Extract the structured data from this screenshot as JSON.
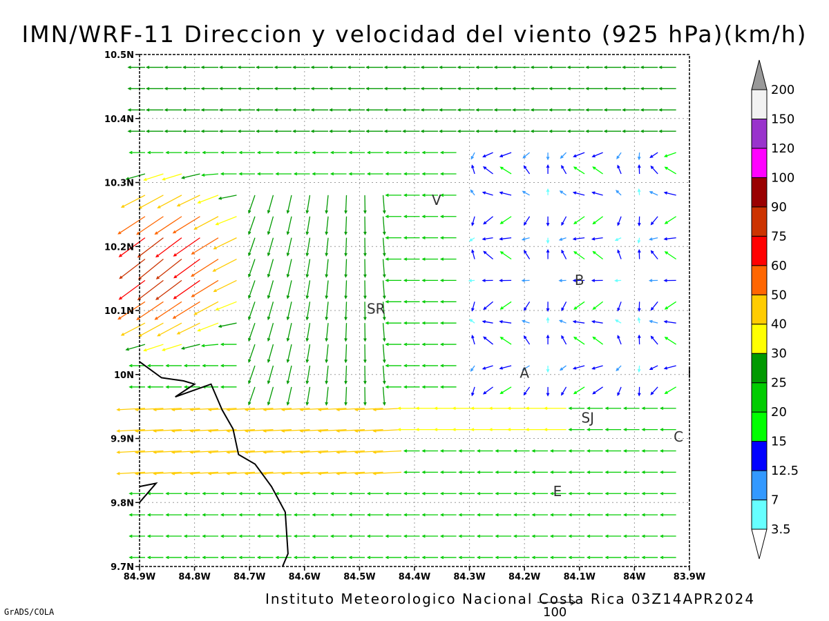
{
  "title": "IMN/WRF-11 Direccion y velocidad del viento (925 hPa)(km/h)",
  "footer": "Instituto Meteorologico Nacional Costa Rica 03Z14APR2024",
  "credit": "GrADS/COLA",
  "ref_vector_label": "100",
  "axes": {
    "lon_labels": [
      "84.9W",
      "84.8W",
      "84.7W",
      "84.6W",
      "84.5W",
      "84.4W",
      "84.3W",
      "84.2W",
      "84.1W",
      "84W",
      "83.9W"
    ],
    "lat_labels": [
      "10.5N",
      "10.4N",
      "10.3N",
      "10.2N",
      "10.1N",
      "10N",
      "9.9N",
      "9.8N",
      "9.7N"
    ]
  },
  "cities": [
    {
      "name": "V",
      "lon": -84.36,
      "lat": 10.265
    },
    {
      "name": "B",
      "lon": -84.1,
      "lat": 10.14
    },
    {
      "name": "SR",
      "lon": -84.47,
      "lat": 10.095
    },
    {
      "name": "A",
      "lon": -84.2,
      "lat": 9.995
    },
    {
      "name": "SJ",
      "lon": -84.085,
      "lat": 9.925
    },
    {
      "name": "C",
      "lon": -83.92,
      "lat": 9.895
    },
    {
      "name": "E",
      "lon": -84.14,
      "lat": 9.81
    },
    {
      "name": "I",
      "lon": -83.9,
      "lat": 9.995
    }
  ],
  "colorbar": {
    "labels": [
      "3.5",
      "7",
      "12.5",
      "15",
      "20",
      "25",
      "30",
      "40",
      "50",
      "60",
      "75",
      "90",
      "100",
      "120",
      "150",
      "200"
    ],
    "colors": [
      "#66ffff",
      "#3399ff",
      "#0000ff",
      "#00ff00",
      "#00cc00",
      "#009900",
      "#ffff00",
      "#ffcc00",
      "#ff6600",
      "#ff0000",
      "#cc3300",
      "#990000",
      "#ff00ff",
      "#9933cc",
      "#f2f2f2",
      "#999999"
    ]
  },
  "coastline": [
    [
      -84.9,
      10.02
    ],
    [
      -84.86,
      9.995
    ],
    [
      -84.82,
      9.99
    ],
    [
      -84.8,
      9.985
    ],
    [
      -84.835,
      9.965
    ],
    [
      -84.77,
      9.985
    ],
    [
      -84.75,
      9.945
    ],
    [
      -84.73,
      9.915
    ],
    [
      -84.72,
      9.875
    ],
    [
      -84.69,
      9.86
    ],
    [
      -84.66,
      9.825
    ],
    [
      -84.635,
      9.785
    ],
    [
      -84.63,
      9.72
    ],
    [
      -84.64,
      9.7
    ]
  ],
  "coastline2": [
    [
      -84.9,
      9.825
    ],
    [
      -84.87,
      9.83
    ],
    [
      -84.9,
      9.8
    ]
  ]
}
